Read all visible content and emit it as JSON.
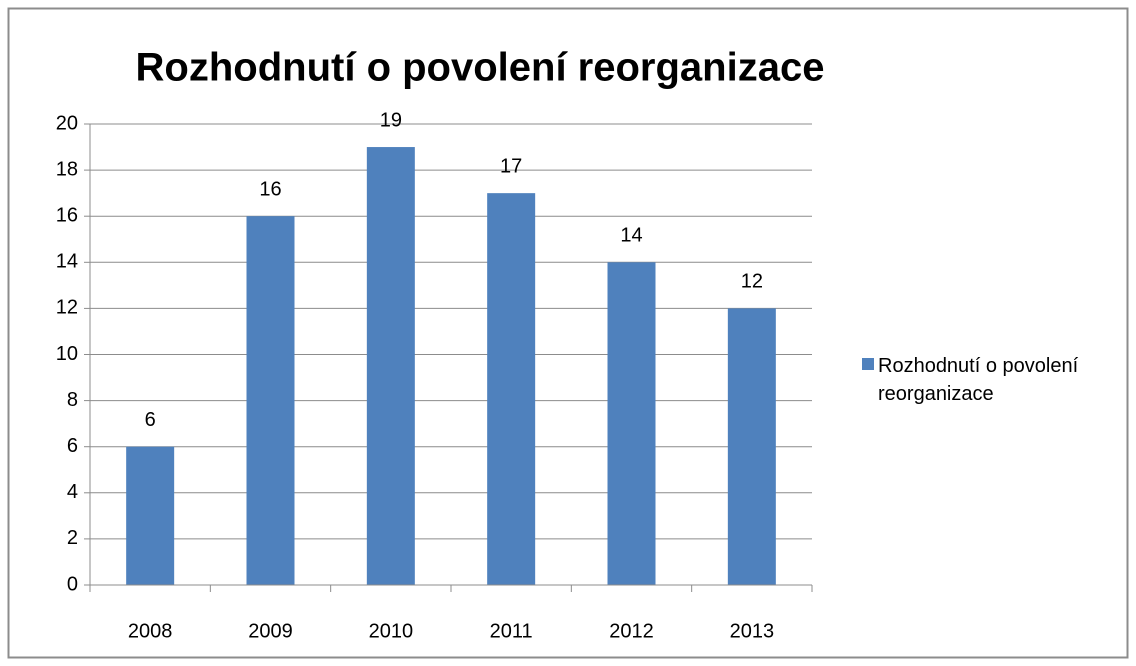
{
  "chart_data": {
    "type": "bar",
    "title": "Rozhodnutí o povolení reorganizace",
    "categories": [
      "2008",
      "2009",
      "2010",
      "2011",
      "2012",
      "2013"
    ],
    "series": [
      {
        "name": "Rozhodnutí o povolení reorganizace",
        "color": "#4f81bd",
        "values": [
          6,
          16,
          19,
          17,
          14,
          12
        ]
      }
    ],
    "ylim": [
      0,
      20
    ],
    "yticks": [
      0,
      2,
      4,
      6,
      8,
      10,
      12,
      14,
      16,
      18,
      20
    ],
    "grid": true,
    "legend": "right"
  }
}
